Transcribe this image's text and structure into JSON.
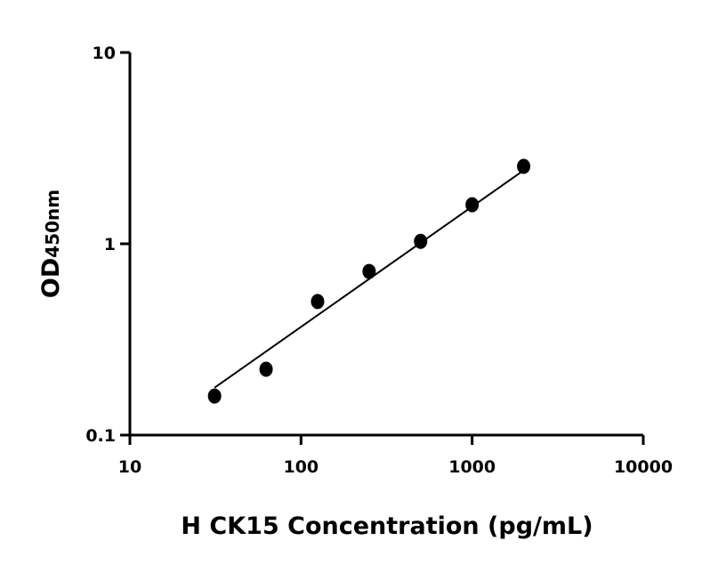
{
  "chart_data": {
    "type": "scatter",
    "title": "",
    "xlabel": "H CK15 Concentration (pg/mL)",
    "ylabel_main": "OD",
    "ylabel_sub": "450nm",
    "x_scale": "log",
    "y_scale": "log",
    "xlim": [
      10,
      10000
    ],
    "ylim": [
      0.1,
      10
    ],
    "x_ticks": [
      "10",
      "100",
      "1000",
      "10000"
    ],
    "y_ticks": [
      "0.1",
      "1",
      "10"
    ],
    "grid": false,
    "points": {
      "x": [
        31.25,
        62.5,
        125,
        250,
        500,
        1000,
        2000
      ],
      "y": [
        0.16,
        0.221,
        0.499,
        0.717,
        1.03,
        1.6,
        2.54
      ]
    },
    "fit_line": {
      "x": [
        31.25,
        2000
      ],
      "y": [
        0.177,
        2.42
      ]
    },
    "colors": {
      "marker": "#000000",
      "line": "#000000",
      "axis": "#000000"
    }
  }
}
